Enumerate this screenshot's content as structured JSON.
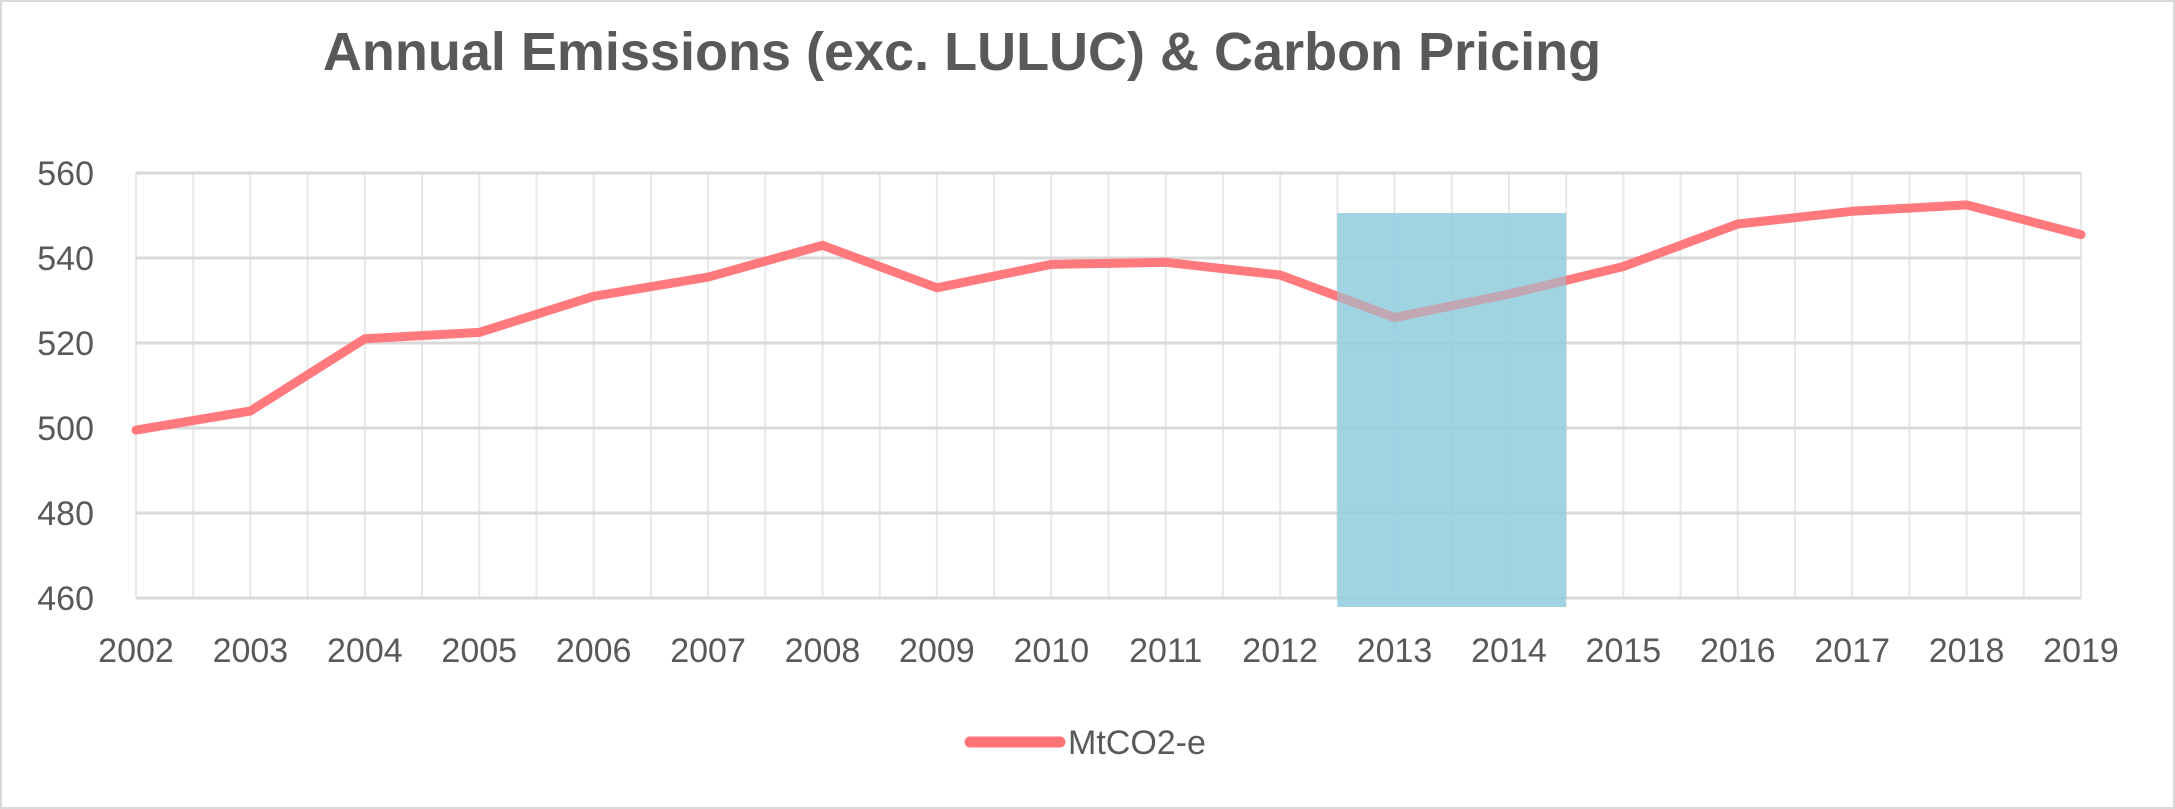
{
  "chart_data": {
    "type": "line",
    "title": "Annual Emissions (exc. LULUC) & Carbon Pricing",
    "xlabel": "",
    "ylabel": "",
    "categories": [
      "2002",
      "2003",
      "2004",
      "2005",
      "2006",
      "2007",
      "2008",
      "2009",
      "2010",
      "2011",
      "2012",
      "2013",
      "2014",
      "2015",
      "2016",
      "2017",
      "2018",
      "2019"
    ],
    "series": [
      {
        "name": "MtCO2-e",
        "color": "#ff7276",
        "values": [
          499.5,
          504,
          521,
          522.5,
          531,
          535.5,
          543,
          533,
          538.5,
          539,
          536,
          526,
          531.5,
          538,
          548,
          551,
          552.5,
          545.5
        ]
      }
    ],
    "ylim": [
      460,
      560
    ],
    "yticks": [
      "460",
      "480",
      "500",
      "520",
      "540",
      "560"
    ],
    "y_tick_values": [
      460,
      480,
      500,
      520,
      540,
      560
    ],
    "grid": true,
    "legend_position": "bottom",
    "highlight": {
      "from": "2012.5",
      "to": "2014.5",
      "color": "#92cddf",
      "opacity": 0.7,
      "meaning": "Carbon Pricing"
    },
    "colors": {
      "grid": "#d9d9d9",
      "text": "#595959",
      "border": "#d9d9d9"
    }
  }
}
